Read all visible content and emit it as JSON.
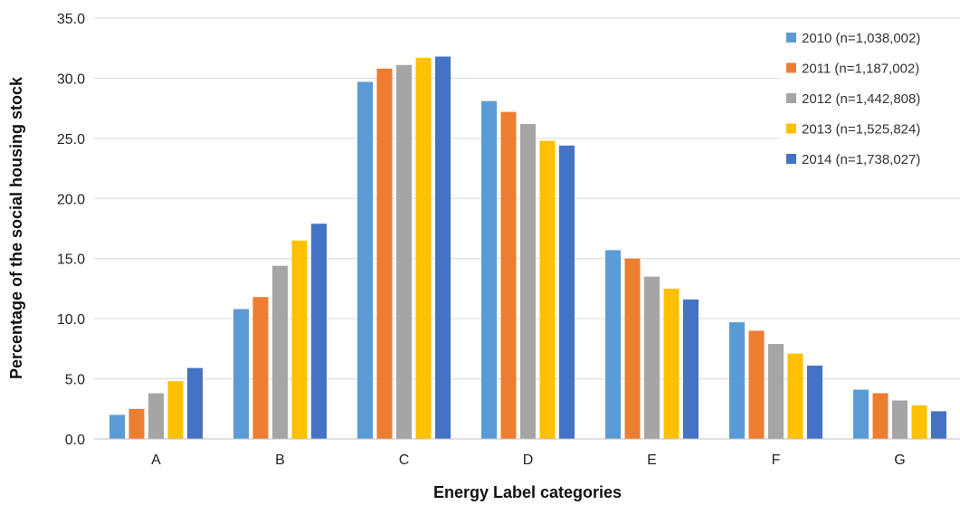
{
  "chart_data": {
    "type": "bar",
    "xlabel": "Energy Label categories",
    "ylabel": "Percentage of the social housing stock",
    "categories": [
      "A",
      "B",
      "C",
      "D",
      "E",
      "F",
      "G"
    ],
    "ylim": [
      0,
      35
    ],
    "yticks": [
      "0.0",
      "5.0",
      "10.0",
      "15.0",
      "20.0",
      "25.0",
      "30.0",
      "35.0"
    ],
    "grid": true,
    "legend_position": "right",
    "series": [
      {
        "name": "2010 (n=1,038,002)",
        "color": "#5B9BD5",
        "values": [
          2.0,
          10.8,
          29.7,
          28.1,
          15.7,
          9.7,
          4.1
        ]
      },
      {
        "name": "2011 (n=1,187,002)",
        "color": "#ED7D31",
        "values": [
          2.5,
          11.8,
          30.8,
          27.2,
          15.0,
          9.0,
          3.8
        ]
      },
      {
        "name": "2012 (n=1,442,808)",
        "color": "#A5A5A5",
        "values": [
          3.8,
          14.4,
          31.1,
          26.2,
          13.5,
          7.9,
          3.2
        ]
      },
      {
        "name": "2013 (n=1,525,824)",
        "color": "#FFC000",
        "values": [
          4.8,
          16.5,
          31.7,
          24.8,
          12.5,
          7.1,
          2.8
        ]
      },
      {
        "name": "2014 (n=1,738,027)",
        "color": "#4472C4",
        "values": [
          5.9,
          17.9,
          31.8,
          24.4,
          11.6,
          6.1,
          2.3
        ]
      }
    ]
  }
}
